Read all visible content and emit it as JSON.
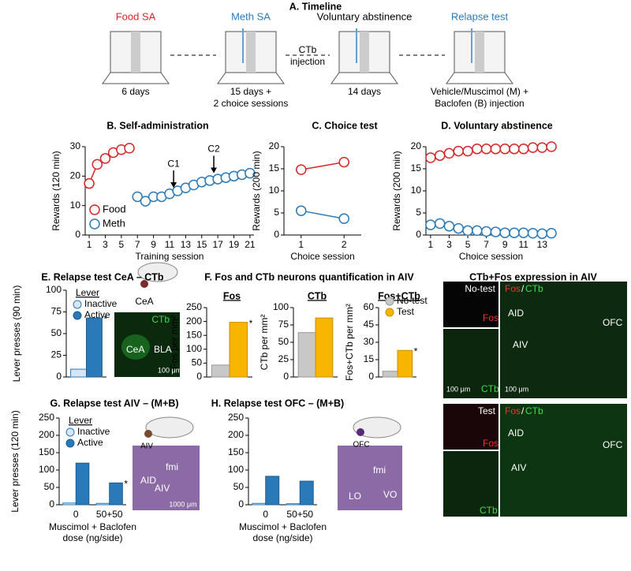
{
  "timeline": {
    "title": "A. Timeline",
    "stages": [
      {
        "name": "Food SA",
        "color": "#d62728",
        "duration": [
          "6 days"
        ]
      },
      {
        "name": "Meth SA",
        "color": "#2a7ab9",
        "duration": [
          "15 days +",
          "2 choice sessions"
        ]
      },
      {
        "name": "Voluntary abstinence",
        "color": "#000000",
        "duration": [
          "14 days"
        ]
      },
      {
        "name": "Relapse test",
        "color": "#2a7ab9",
        "duration": [
          "Vehicle/Muscimol (M) +",
          "Baclofen (B) injection"
        ]
      }
    ],
    "transition": [
      "CTb",
      "injection"
    ]
  },
  "figure_titles": {
    "panel_f": "F. Fos and CTb neurons quantification in AIV",
    "images": "CTb+Fos expression in AIV"
  },
  "chart_data": [
    {
      "type": "line",
      "title": "B. Self-administration",
      "x": [
        1,
        2,
        3,
        4,
        5,
        6,
        7,
        8,
        9,
        10,
        11,
        12,
        13,
        14,
        15,
        16,
        17,
        18,
        19,
        20,
        21
      ],
      "xlim": [
        0.5,
        21.5
      ],
      "xticks": [
        1,
        3,
        5,
        7,
        9,
        11,
        13,
        15,
        17,
        19,
        21
      ],
      "ylim": [
        0,
        30
      ],
      "yticks": [
        0,
        10,
        20,
        30
      ],
      "xlabel": "Training session",
      "ylabel": "Rewards (120 min)",
      "legend": "lower left",
      "series": [
        {
          "name": "Food",
          "color": "#d62728",
          "values": [
            17.5,
            24,
            26,
            28,
            29,
            29.5,
            null,
            null,
            null,
            null,
            null,
            null,
            null,
            null,
            null,
            null,
            null,
            null,
            null,
            null,
            null
          ]
        },
        {
          "name": "Meth",
          "color": "#2a7ab9",
          "values": [
            null,
            null,
            null,
            null,
            null,
            null,
            13,
            11.5,
            13,
            13,
            14,
            15,
            16,
            17,
            18,
            18.5,
            19,
            19.5,
            20,
            20.5,
            21
          ]
        }
      ],
      "annotations": [
        {
          "text": "C1",
          "x": 11.5,
          "y": 15.5
        },
        {
          "text": "C2",
          "x": 16.5,
          "y": 20.5
        }
      ]
    },
    {
      "type": "line",
      "title": "C. Choice test",
      "x": [
        1,
        2
      ],
      "xlim": [
        0.6,
        2.4
      ],
      "xticks": [
        1,
        2
      ],
      "ylim": [
        0,
        20
      ],
      "yticks": [
        0,
        5,
        10,
        15,
        20
      ],
      "xlabel": "Choice session",
      "ylabel": "Rewards (200 min)",
      "series": [
        {
          "color": "#d62728",
          "values": [
            14.8,
            16.5
          ]
        },
        {
          "color": "#2a7ab9",
          "values": [
            5.5,
            3.7
          ]
        }
      ]
    },
    {
      "type": "line",
      "title": "D. Voluntary abstinence",
      "x": [
        1,
        2,
        3,
        4,
        5,
        6,
        7,
        8,
        9,
        10,
        11,
        12,
        13,
        14
      ],
      "xlim": [
        0.5,
        14.5
      ],
      "xticks": [
        1,
        3,
        5,
        7,
        9,
        11,
        13
      ],
      "ylim": [
        0,
        20
      ],
      "yticks": [
        0,
        5,
        10,
        15,
        20
      ],
      "xlabel": "Choice session",
      "ylabel": "Rewards (200 min)",
      "series": [
        {
          "color": "#d62728",
          "values": [
            17.5,
            18,
            18.5,
            19,
            19,
            19.5,
            19.5,
            19.5,
            19.5,
            19.5,
            19.5,
            19.8,
            19.8,
            20
          ]
        },
        {
          "color": "#2a7ab9",
          "values": [
            2.3,
            2.6,
            2,
            1.5,
            1,
            1,
            0.8,
            0.7,
            0.5,
            0.5,
            0.5,
            0.4,
            0.3,
            0.4
          ]
        }
      ]
    },
    {
      "type": "bar",
      "title": "E. Relapse test CeA – CTb",
      "categories": [
        null
      ],
      "ylim": [
        0,
        100
      ],
      "yticks": [
        0,
        25,
        50,
        75,
        100
      ],
      "ylabel": "Lever presses (90 min)",
      "legend": "upper left",
      "legend_title": "Lever",
      "series": [
        {
          "name": "Inactive",
          "color": "#d6e6f4",
          "edgecolor": "#2a7ab9",
          "values": [
            9
          ]
        },
        {
          "name": "Active",
          "color": "#2a7ab9",
          "edgecolor": "#1d5c8c",
          "values": [
            68
          ]
        }
      ],
      "annotations": [
        {
          "text": "*",
          "series": 1,
          "category": 0
        }
      ]
    },
    {
      "type": "bar",
      "title": "Fos",
      "categories": [
        null
      ],
      "ylim": [
        0,
        250
      ],
      "yticks": [
        0,
        50,
        100,
        150,
        200,
        250
      ],
      "ylabel": "Fos per mm²",
      "series": [
        {
          "color": "#c8c8c8",
          "edgecolor": "#999999",
          "values": [
            43
          ]
        },
        {
          "color": "#f7b500",
          "edgecolor": "#c98f00",
          "values": [
            197
          ]
        }
      ],
      "annotations": [
        {
          "text": "*",
          "series": 1,
          "category": 0
        }
      ]
    },
    {
      "type": "bar",
      "title": "CTb",
      "categories": [
        null
      ],
      "ylim": [
        0,
        100
      ],
      "yticks": [
        0,
        25,
        50,
        75,
        100
      ],
      "ylabel": "CTb per mm²",
      "series": [
        {
          "color": "#c8c8c8",
          "edgecolor": "#999999",
          "values": [
            64
          ]
        },
        {
          "color": "#f7b500",
          "edgecolor": "#c98f00",
          "values": [
            85
          ]
        }
      ]
    },
    {
      "type": "bar",
      "title": "Fos+CTb",
      "categories": [
        null
      ],
      "ylim": [
        0,
        60
      ],
      "yticks": [
        0,
        15,
        30,
        45,
        60
      ],
      "ylabel": "Fos+CTb per mm²",
      "legend": "upper left",
      "series": [
        {
          "name": "No-test",
          "color": "#c8c8c8",
          "edgecolor": "#999999",
          "values": [
            5
          ]
        },
        {
          "name": "Test",
          "color": "#f7b500",
          "edgecolor": "#c98f00",
          "values": [
            23
          ]
        }
      ],
      "annotations": [
        {
          "text": "*",
          "series": 1,
          "category": 0
        }
      ]
    },
    {
      "type": "bar",
      "title": "G. Relapse test AIV – (M+B)",
      "categories": [
        "0",
        "50+50"
      ],
      "ylim": [
        0,
        250
      ],
      "yticks": [
        0,
        50,
        100,
        150,
        200,
        250
      ],
      "xlabel": [
        "Muscimol + Baclofen",
        "dose (ng/side)"
      ],
      "ylabel": "Lever presses (120 min)",
      "legend": "upper left",
      "legend_title": "Lever",
      "series": [
        {
          "name": "Inactive",
          "color": "#d6e6f4",
          "edgecolor": "#2a7ab9",
          "values": [
            5,
            4
          ]
        },
        {
          "name": "Active",
          "color": "#2a7ab9",
          "edgecolor": "#1d5c8c",
          "values": [
            120,
            63
          ]
        }
      ],
      "annotations": [
        {
          "text": "*",
          "series": 1,
          "category": 1
        }
      ]
    },
    {
      "type": "bar",
      "title": "H. Relapse test OFC – (M+B)",
      "categories": [
        "0",
        "50+50"
      ],
      "ylim": [
        0,
        250
      ],
      "yticks": [
        0,
        50,
        100,
        150,
        200,
        250
      ],
      "xlabel": [
        "Muscimol + Baclofen",
        "dose (ng/side)"
      ],
      "series": [
        {
          "color": "#d6e6f4",
          "edgecolor": "#2a7ab9",
          "values": [
            4,
            3
          ]
        },
        {
          "color": "#2a7ab9",
          "edgecolor": "#1d5c8c",
          "values": [
            82,
            68
          ]
        }
      ]
    }
  ],
  "images": {
    "E": {
      "region": "CeA",
      "labels": [
        "CTb",
        "CeA",
        "BLA"
      ],
      "scale": "100 μm"
    },
    "G": {
      "region": "AIV",
      "labels": [
        "AID",
        "fmi",
        "AIV"
      ],
      "scale": "1000 μm"
    },
    "H": {
      "region": "OFC",
      "labels": [
        "fmi",
        "LO",
        "VO"
      ]
    },
    "aiv": [
      {
        "group": "No-test",
        "small": [
          "Fos",
          "CTb"
        ],
        "scale": "100 μm",
        "big": [
          "Fos",
          "/",
          "CTb",
          "AID",
          "AIV",
          "OFC"
        ],
        "big_scale": "100 μm"
      },
      {
        "group": "Test",
        "small": [
          "Fos",
          "CTb"
        ],
        "big": [
          "Fos",
          "/",
          "CTb",
          "AID",
          "AIV",
          "OFC"
        ]
      }
    ]
  }
}
